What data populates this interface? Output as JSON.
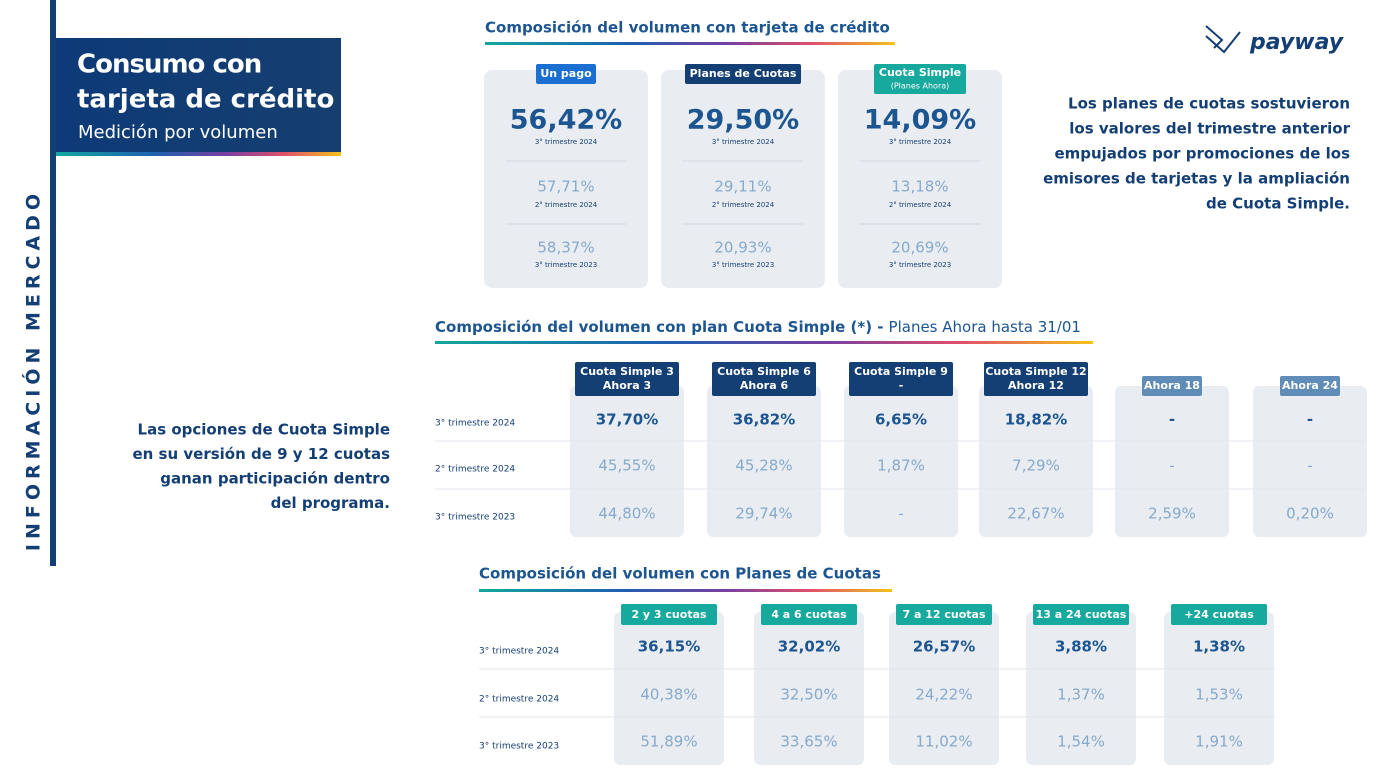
{
  "side_label": "INFORMACIÓN MERCADO",
  "header": {
    "title_lines": [
      "Consumo con",
      "tarjeta de crédito"
    ],
    "subtitle": "Medición por volumen"
  },
  "logo": "payway",
  "section1": {
    "title": "Composición del volumen con tarjeta de crédito",
    "cards": [
      {
        "label": "Un pago",
        "rows": [
          {
            "value": "56,42%",
            "period": "3° trimestre 2024"
          },
          {
            "value": "57,71%",
            "period": "2° trimestre 2024"
          },
          {
            "value": "58,37%",
            "period": "3° trimestre 2023"
          }
        ]
      },
      {
        "label": "Planes de Cuotas",
        "rows": [
          {
            "value": "29,50%",
            "period": "3° trimestre 2024"
          },
          {
            "value": "29,11%",
            "period": "2° trimestre 2024"
          },
          {
            "value": "20,93%",
            "period": "3° trimestre 2023"
          }
        ]
      },
      {
        "label": "Cuota Simple",
        "sublabel": "(Planes Ahora)",
        "rows": [
          {
            "value": "14,09%",
            "period": "3° trimestre 2024"
          },
          {
            "value": "13,18%",
            "period": "2° trimestre 2024"
          },
          {
            "value": "20,69%",
            "period": "3° trimestre 2023"
          }
        ]
      }
    ]
  },
  "note1": {
    "lines": [
      "Los planes de cuotas sostuvieron",
      "los valores del trimestre anterior",
      "empujados por promociones de los",
      "emisores de tarjetas y la ampliación",
      "de Cuota Simple."
    ]
  },
  "section2": {
    "title": "Composición del volumen con plan Cuota Simple (*) -",
    "title_suffix": "Planes Ahora hasta 31/01",
    "columns": [
      [
        "Cuota Simple 3",
        "Ahora 3"
      ],
      [
        "Cuota Simple 6",
        "Ahora 6"
      ],
      [
        "Cuota Simple 9",
        "-"
      ],
      [
        "Cuota Simple 12",
        "Ahora 12"
      ],
      [
        "Ahora 18"
      ],
      [
        "Ahora 24"
      ]
    ],
    "row_labels": [
      "3° trimestre 2024",
      "2° trimestre 2024",
      "3° trimestre 2023"
    ],
    "rows": [
      [
        "37,70%",
        "36,82%",
        "6,65%",
        "18,82%",
        "-",
        "-"
      ],
      [
        "45,55%",
        "45,28%",
        "1,87%",
        "7,29%",
        "-",
        "-"
      ],
      [
        "44,80%",
        "29,74%",
        "-",
        "22,67%",
        "2,59%",
        "0,20%"
      ]
    ]
  },
  "note2": {
    "lines": [
      "Las opciones de Cuota Simple",
      "en su versión de 9 y 12 cuotas",
      "ganan participación dentro",
      "del programa."
    ]
  },
  "section3": {
    "title": "Composición del volumen con Planes de Cuotas",
    "columns": [
      "2 y 3 cuotas",
      "4 a 6 cuotas",
      "7 a 12 cuotas",
      "13 a 24 cuotas",
      "+24 cuotas"
    ],
    "row_labels": [
      "3° trimestre 2024",
      "2° trimestre 2024",
      "3° trimestre 2023"
    ],
    "rows": [
      [
        "36,15%",
        "32,02%",
        "26,57%",
        "3,88%",
        "1,38%"
      ],
      [
        "40,38%",
        "32,50%",
        "24,22%",
        "1,37%",
        "1,53%"
      ],
      [
        "51,89%",
        "33,65%",
        "11,02%",
        "1,54%",
        "1,91%"
      ]
    ]
  }
}
